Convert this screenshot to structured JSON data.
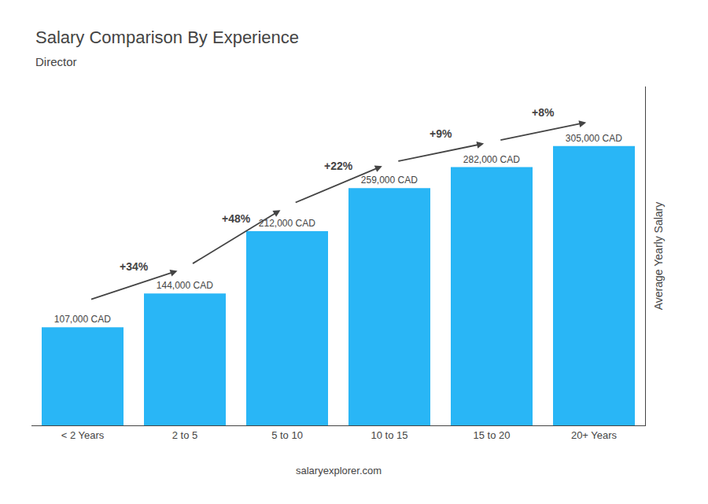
{
  "chart_data": {
    "type": "bar",
    "title": "Salary Comparison By Experience",
    "subtitle": "Director",
    "categories": [
      "< 2 Years",
      "2 to 5",
      "5 to 10",
      "10 to 15",
      "15 to 20",
      "20+ Years"
    ],
    "values": [
      107000,
      144000,
      212000,
      259000,
      282000,
      305000
    ],
    "value_labels": [
      "107,000 CAD",
      "144,000 CAD",
      "212,000 CAD",
      "259,000 CAD",
      "282,000 CAD",
      "305,000 CAD"
    ],
    "data_labels": true,
    "color": "#29b6f6",
    "ylabel": "Average Yearly Salary",
    "ylim": [
      0,
      370000
    ],
    "tick_labels": "x",
    "grid": false,
    "annotations": [
      {
        "text": "+34%",
        "from": "< 2 Years",
        "to": "2 to 5"
      },
      {
        "text": "+48%",
        "from": "2 to 5",
        "to": "5 to 10"
      },
      {
        "text": "+22%",
        "from": "5 to 10",
        "to": "10 to 15"
      },
      {
        "text": "+9%",
        "from": "10 to 15",
        "to": "15 to 20"
      },
      {
        "text": "+8%",
        "from": "15 to 20",
        "to": "20+ Years"
      },
      {
        "text": "salaryexplorer.com"
      }
    ]
  }
}
